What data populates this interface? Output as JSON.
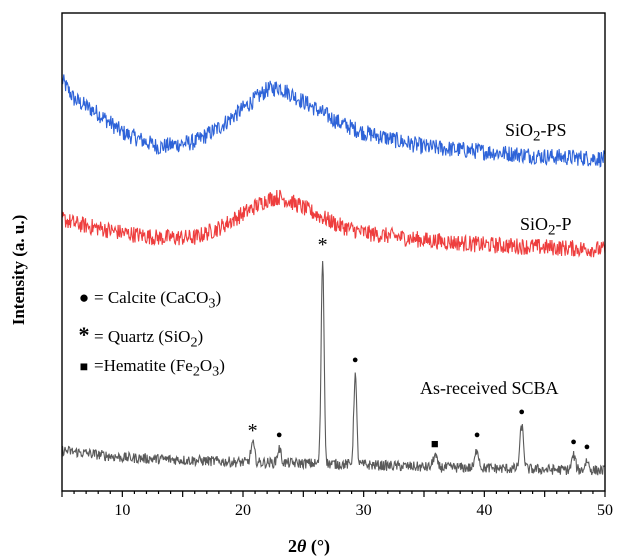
{
  "chart_data": {
    "type": "line",
    "xlabel_parts": [
      "2",
      "θ",
      " (°)"
    ],
    "ylabel": "Intensity (a. u.)",
    "xlim": [
      5,
      50
    ],
    "xticks": [
      10,
      20,
      30,
      40,
      50
    ],
    "yticks_shown": false,
    "series": [
      {
        "name": "SiO2-PS",
        "label_main": "SiO",
        "label_sub": "2",
        "label_rest": "-PS",
        "color": "#2e63d8",
        "points": [
          [
            5,
            0.86
          ],
          [
            6,
            0.82
          ],
          [
            8,
            0.79
          ],
          [
            10,
            0.75
          ],
          [
            13,
            0.72
          ],
          [
            16,
            0.73
          ],
          [
            18,
            0.76
          ],
          [
            20,
            0.8
          ],
          [
            22,
            0.84
          ],
          [
            23,
            0.845
          ],
          [
            24,
            0.83
          ],
          [
            26,
            0.8
          ],
          [
            28,
            0.77
          ],
          [
            30,
            0.75
          ],
          [
            35,
            0.72
          ],
          [
            40,
            0.71
          ],
          [
            45,
            0.7
          ],
          [
            50,
            0.695
          ]
        ]
      },
      {
        "name": "SiO2-P",
        "label_main": "SiO",
        "label_sub": "2",
        "label_rest": "-P",
        "color": "#ee3e3e",
        "points": [
          [
            5,
            0.57
          ],
          [
            6,
            0.56
          ],
          [
            8,
            0.55
          ],
          [
            10,
            0.54
          ],
          [
            13,
            0.53
          ],
          [
            16,
            0.53
          ],
          [
            18,
            0.55
          ],
          [
            20,
            0.58
          ],
          [
            22,
            0.61
          ],
          [
            23,
            0.615
          ],
          [
            24,
            0.605
          ],
          [
            26,
            0.58
          ],
          [
            28,
            0.555
          ],
          [
            30,
            0.54
          ],
          [
            35,
            0.525
          ],
          [
            40,
            0.515
          ],
          [
            45,
            0.51
          ],
          [
            50,
            0.505
          ]
        ]
      },
      {
        "name": "As-received SCBA",
        "label_main": "As-received SCBA",
        "color": "#5a5a5a",
        "baseline": [
          [
            5,
            0.085
          ],
          [
            10,
            0.07
          ],
          [
            15,
            0.065
          ],
          [
            20,
            0.06
          ],
          [
            25,
            0.058
          ],
          [
            30,
            0.055
          ],
          [
            35,
            0.05
          ],
          [
            40,
            0.048
          ],
          [
            45,
            0.045
          ],
          [
            50,
            0.043
          ]
        ],
        "peaks": [
          [
            20.8,
            0.04
          ],
          [
            23.0,
            0.03
          ],
          [
            26.6,
            0.43
          ],
          [
            29.3,
            0.19
          ],
          [
            35.9,
            0.025
          ],
          [
            39.4,
            0.04
          ],
          [
            43.1,
            0.09
          ],
          [
            47.4,
            0.03
          ],
          [
            48.5,
            0.02
          ]
        ]
      }
    ],
    "peak_markers": [
      {
        "x": 20.8,
        "symbol": "star"
      },
      {
        "x": 23.0,
        "symbol": "dot"
      },
      {
        "x": 26.6,
        "symbol": "star"
      },
      {
        "x": 29.3,
        "symbol": "dot"
      },
      {
        "x": 35.9,
        "symbol": "square"
      },
      {
        "x": 39.4,
        "symbol": "dot"
      },
      {
        "x": 43.1,
        "symbol": "dot"
      },
      {
        "x": 47.4,
        "symbol": "dot"
      },
      {
        "x": 48.5,
        "symbol": "dot"
      }
    ],
    "legend": [
      {
        "symbol": "dot",
        "glyph": "●",
        "text": "= Calcite (CaCO",
        "sub": "3",
        "after": ")"
      },
      {
        "symbol": "star",
        "glyph": "*",
        "text": "= Quartz (SiO",
        "sub": "2",
        "after": ")"
      },
      {
        "symbol": "square",
        "glyph": "■",
        "text": "=Hematite (Fe",
        "sub": "2",
        "after": "O",
        "sub2": "3",
        "after2": ")"
      }
    ]
  }
}
